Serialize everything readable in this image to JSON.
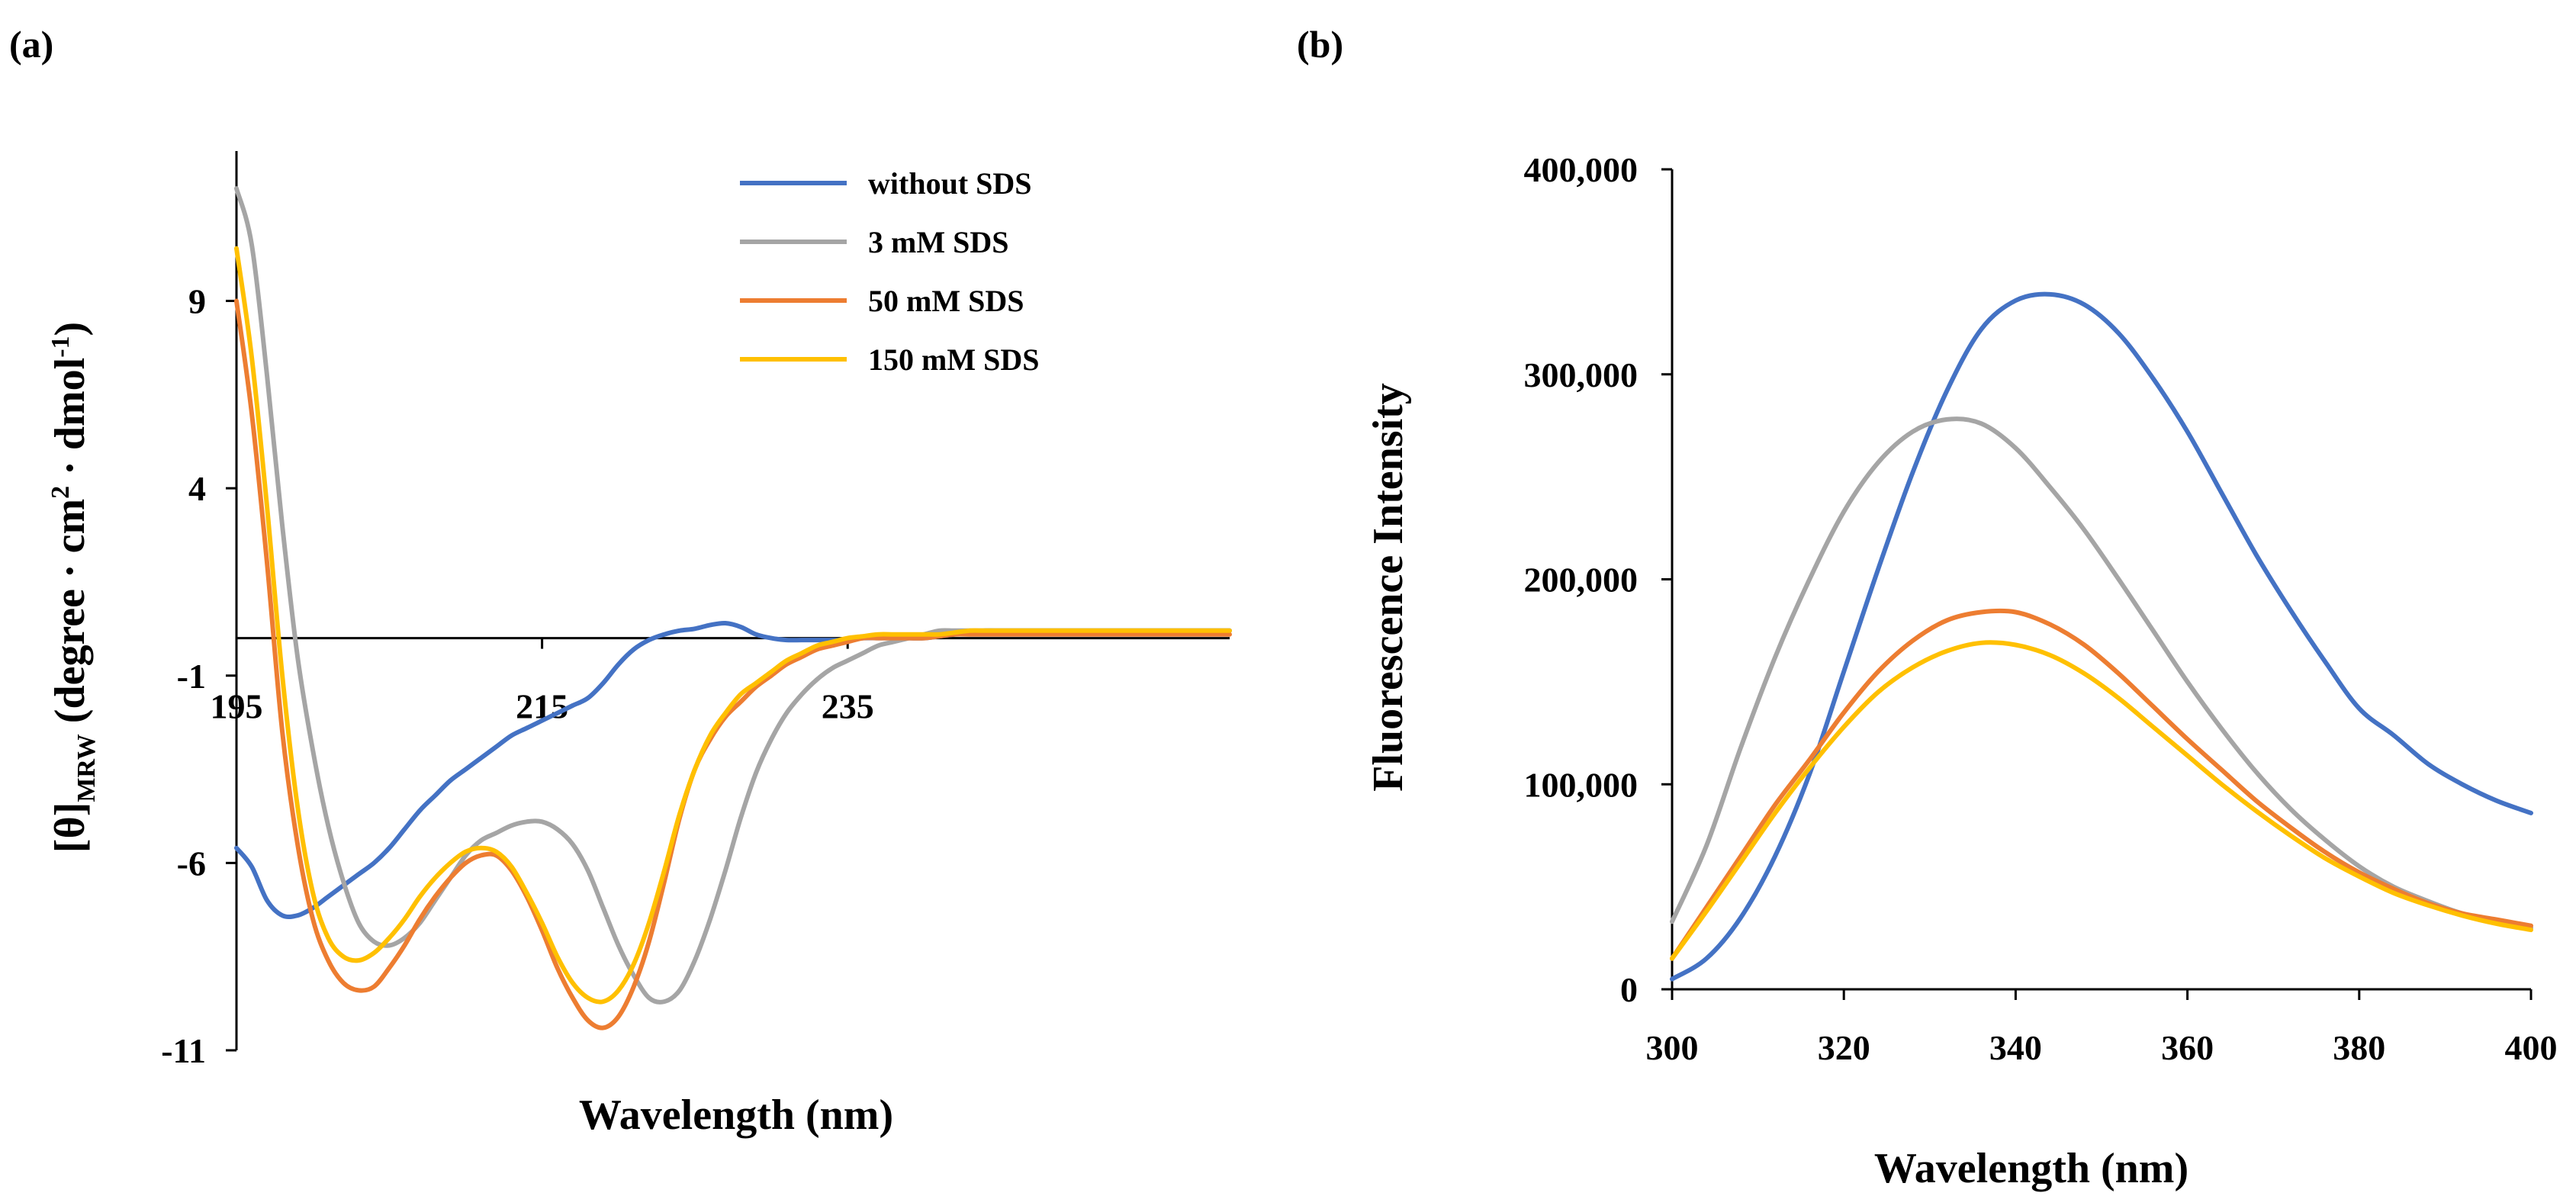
{
  "chart_data": [
    {
      "panel_label": "(a)",
      "type": "line",
      "title": "",
      "xlabel": "Wavelength (nm)",
      "ylabel_main": "[θ]",
      "ylabel_sub": "MRW",
      "ylabel_units_a": "(degree · cm",
      "ylabel_units_sup1": "2",
      "ylabel_units_b": " · dmol",
      "ylabel_units_sup2": "-1",
      "ylabel_units_c": ")",
      "xlim": [
        195,
        260
      ],
      "ylim": [
        -11,
        13
      ],
      "xticks": [
        195,
        215,
        235
      ],
      "xtick_labels": [
        "195",
        "215",
        "235"
      ],
      "yticks": [
        -11,
        -6,
        -1,
        4,
        9
      ],
      "ytick_labels": [
        "-11",
        "-6",
        "-1",
        "4",
        "9"
      ],
      "zero_line": true,
      "grid": false,
      "legend": "top-right",
      "series": [
        {
          "name": "without SDS",
          "color": "#4472C4",
          "x": [
            195,
            196,
            197,
            198,
            199,
            200,
            201,
            202,
            203,
            204,
            205,
            206,
            207,
            208,
            209,
            210,
            211,
            212,
            213,
            214,
            215,
            216,
            217,
            218,
            219,
            220,
            221,
            222,
            223,
            224,
            225,
            226,
            227,
            228,
            229,
            230,
            231,
            232,
            233,
            234,
            235,
            236,
            237,
            238,
            239,
            240,
            241,
            242,
            243,
            244,
            245,
            246,
            247,
            248,
            249,
            250,
            251,
            252,
            253,
            254,
            255,
            256,
            257,
            258,
            259,
            260
          ],
          "values": [
            -5.6,
            -6.1,
            -7.0,
            -7.4,
            -7.4,
            -7.2,
            -6.9,
            -6.6,
            -6.3,
            -6.0,
            -5.6,
            -5.1,
            -4.6,
            -4.2,
            -3.8,
            -3.5,
            -3.2,
            -2.9,
            -2.6,
            -2.4,
            -2.2,
            -2.0,
            -1.8,
            -1.6,
            -1.2,
            -0.7,
            -0.3,
            -0.05,
            0.1,
            0.2,
            0.25,
            0.35,
            0.4,
            0.3,
            0.1,
            0.0,
            -0.05,
            -0.05,
            -0.05,
            -0.05,
            -0.05,
            0.0,
            0.0,
            0.0,
            0.0,
            0.0,
            0.05,
            0.1,
            0.15,
            0.2,
            0.2,
            0.2,
            0.2,
            0.2,
            0.2,
            0.2,
            0.2,
            0.2,
            0.2,
            0.2,
            0.2,
            0.2,
            0.2,
            0.2,
            0.2,
            0.2
          ]
        },
        {
          "name": "3 mM SDS",
          "color": "#A5A5A5",
          "x": [
            195,
            196,
            197,
            198,
            199,
            200,
            201,
            202,
            203,
            204,
            205,
            206,
            207,
            208,
            209,
            210,
            211,
            212,
            213,
            214,
            215,
            216,
            217,
            218,
            219,
            220,
            221,
            222,
            223,
            224,
            225,
            226,
            227,
            228,
            229,
            230,
            231,
            232,
            233,
            234,
            235,
            236,
            237,
            238,
            239,
            240,
            241,
            242,
            243,
            244,
            245,
            246,
            247,
            248,
            249,
            250,
            251,
            252,
            253,
            254,
            255,
            256,
            257,
            258,
            259,
            260
          ],
          "values": [
            12.0,
            10.5,
            7.0,
            3.0,
            -0.5,
            -3.0,
            -5.0,
            -6.5,
            -7.6,
            -8.1,
            -8.2,
            -8.0,
            -7.6,
            -7.0,
            -6.4,
            -5.8,
            -5.4,
            -5.2,
            -5.0,
            -4.9,
            -4.9,
            -5.1,
            -5.5,
            -6.2,
            -7.2,
            -8.2,
            -9.0,
            -9.6,
            -9.7,
            -9.4,
            -8.6,
            -7.5,
            -6.2,
            -4.8,
            -3.6,
            -2.7,
            -2.0,
            -1.5,
            -1.1,
            -0.8,
            -0.6,
            -0.4,
            -0.2,
            -0.1,
            0.0,
            0.1,
            0.2,
            0.2,
            0.2,
            0.2,
            0.2,
            0.2,
            0.2,
            0.2,
            0.2,
            0.2,
            0.2,
            0.2,
            0.2,
            0.2,
            0.2,
            0.2,
            0.2,
            0.2,
            0.2,
            0.2
          ]
        },
        {
          "name": "50 mM SDS",
          "color": "#ED7D31",
          "x": [
            195,
            196,
            197,
            198,
            199,
            200,
            201,
            202,
            203,
            204,
            205,
            206,
            207,
            208,
            209,
            210,
            211,
            212,
            213,
            214,
            215,
            216,
            217,
            218,
            219,
            220,
            221,
            222,
            223,
            224,
            225,
            226,
            227,
            228,
            229,
            230,
            231,
            232,
            233,
            234,
            235,
            236,
            237,
            238,
            239,
            240,
            241,
            242,
            243,
            244,
            245,
            246,
            247,
            248,
            249,
            250,
            251,
            252,
            253,
            254,
            255,
            256,
            257,
            258,
            259,
            260
          ],
          "values": [
            9.0,
            6.0,
            2.0,
            -2.5,
            -5.5,
            -7.5,
            -8.6,
            -9.2,
            -9.4,
            -9.3,
            -8.8,
            -8.2,
            -7.5,
            -6.9,
            -6.4,
            -6.0,
            -5.8,
            -5.8,
            -6.2,
            -6.9,
            -7.8,
            -8.8,
            -9.6,
            -10.2,
            -10.4,
            -10.1,
            -9.3,
            -8.1,
            -6.5,
            -4.8,
            -3.5,
            -2.7,
            -2.1,
            -1.7,
            -1.3,
            -1.0,
            -0.7,
            -0.5,
            -0.3,
            -0.2,
            -0.1,
            0.0,
            0.0,
            0.0,
            0.0,
            0.0,
            0.05,
            0.1,
            0.1,
            0.1,
            0.1,
            0.1,
            0.1,
            0.1,
            0.1,
            0.1,
            0.1,
            0.1,
            0.1,
            0.1,
            0.1,
            0.1,
            0.1,
            0.1,
            0.1,
            0.1
          ]
        },
        {
          "name": "150 mM SDS",
          "color": "#FFC000",
          "x": [
            195,
            196,
            197,
            198,
            199,
            200,
            201,
            202,
            203,
            204,
            205,
            206,
            207,
            208,
            209,
            210,
            211,
            212,
            213,
            214,
            215,
            216,
            217,
            218,
            219,
            220,
            221,
            222,
            223,
            224,
            225,
            226,
            227,
            228,
            229,
            230,
            231,
            232,
            233,
            234,
            235,
            236,
            237,
            238,
            239,
            240,
            241,
            242,
            243,
            244,
            245,
            246,
            247,
            248,
            249,
            250,
            251,
            252,
            253,
            254,
            255,
            256,
            257,
            258,
            259,
            260
          ],
          "values": [
            10.4,
            7.5,
            3.5,
            -1.0,
            -4.5,
            -6.8,
            -8.0,
            -8.5,
            -8.6,
            -8.4,
            -8.0,
            -7.5,
            -6.9,
            -6.4,
            -6.0,
            -5.7,
            -5.6,
            -5.7,
            -6.1,
            -6.8,
            -7.6,
            -8.5,
            -9.2,
            -9.6,
            -9.7,
            -9.4,
            -8.7,
            -7.6,
            -6.2,
            -4.7,
            -3.5,
            -2.6,
            -2.0,
            -1.5,
            -1.2,
            -0.9,
            -0.6,
            -0.4,
            -0.2,
            -0.1,
            0.0,
            0.05,
            0.1,
            0.1,
            0.1,
            0.1,
            0.1,
            0.15,
            0.2,
            0.2,
            0.2,
            0.2,
            0.2,
            0.2,
            0.2,
            0.2,
            0.2,
            0.2,
            0.2,
            0.2,
            0.2,
            0.2,
            0.2,
            0.2,
            0.2,
            0.2
          ]
        }
      ]
    },
    {
      "panel_label": "(b)",
      "type": "line",
      "title": "",
      "xlabel": "Wavelength (nm)",
      "ylabel": "Fluorescence Intensity",
      "xlim": [
        300,
        400
      ],
      "ylim": [
        0,
        400000
      ],
      "xticks": [
        300,
        320,
        340,
        360,
        380,
        400
      ],
      "xtick_labels": [
        "300",
        "320",
        "340",
        "360",
        "380",
        "400"
      ],
      "yticks": [
        0,
        100000,
        200000,
        300000,
        400000
      ],
      "ytick_labels": [
        "0",
        "100,000",
        "200,000",
        "300,000",
        "400,000"
      ],
      "grid": false,
      "series": [
        {
          "name": "without SDS",
          "color": "#4472C4",
          "x": [
            300,
            304,
            308,
            312,
            316,
            320,
            324,
            328,
            332,
            336,
            340,
            344,
            348,
            352,
            356,
            360,
            364,
            368,
            372,
            376,
            380,
            384,
            388,
            392,
            396,
            400
          ],
          "values": [
            5000,
            15000,
            35000,
            65000,
            105000,
            155000,
            205000,
            252000,
            292000,
            322000,
            336000,
            339000,
            334000,
            320000,
            298000,
            272000,
            242000,
            212000,
            185000,
            160000,
            137000,
            124000,
            110000,
            100000,
            92000,
            86000
          ]
        },
        {
          "name": "3 mM SDS",
          "color": "#A5A5A5",
          "x": [
            300,
            304,
            308,
            312,
            316,
            320,
            324,
            328,
            332,
            336,
            340,
            344,
            348,
            352,
            356,
            360,
            364,
            368,
            372,
            376,
            380,
            384,
            388,
            392,
            396,
            400
          ],
          "values": [
            33000,
            70000,
            118000,
            162000,
            200000,
            233000,
            257000,
            272000,
            278000,
            276000,
            264000,
            245000,
            224000,
            200000,
            175000,
            150000,
            127000,
            106000,
            88000,
            73000,
            60000,
            50000,
            43000,
            37000,
            33000,
            30000
          ]
        },
        {
          "name": "50 mM SDS",
          "color": "#ED7D31",
          "x": [
            300,
            304,
            308,
            312,
            316,
            320,
            324,
            328,
            332,
            336,
            340,
            344,
            348,
            352,
            356,
            360,
            364,
            368,
            372,
            376,
            380,
            384,
            388,
            392,
            396,
            400
          ],
          "values": [
            15000,
            40000,
            65000,
            90000,
            112000,
            135000,
            155000,
            170000,
            180000,
            184000,
            184000,
            178000,
            168000,
            154000,
            138000,
            122000,
            107000,
            92000,
            79000,
            67000,
            57000,
            49000,
            42000,
            37000,
            34000,
            31000
          ]
        },
        {
          "name": "150 mM SDS",
          "color": "#FFC000",
          "x": [
            300,
            304,
            308,
            312,
            316,
            320,
            324,
            328,
            332,
            336,
            340,
            344,
            348,
            352,
            356,
            360,
            364,
            368,
            372,
            376,
            380,
            384,
            388,
            392,
            396,
            400
          ],
          "values": [
            15000,
            38000,
            62000,
            86000,
            108000,
            128000,
            145000,
            157000,
            165000,
            169000,
            168000,
            163000,
            154000,
            142000,
            128000,
            114000,
            100000,
            87000,
            75000,
            64000,
            55000,
            47000,
            41000,
            36000,
            32000,
            29000
          ]
        }
      ]
    }
  ]
}
